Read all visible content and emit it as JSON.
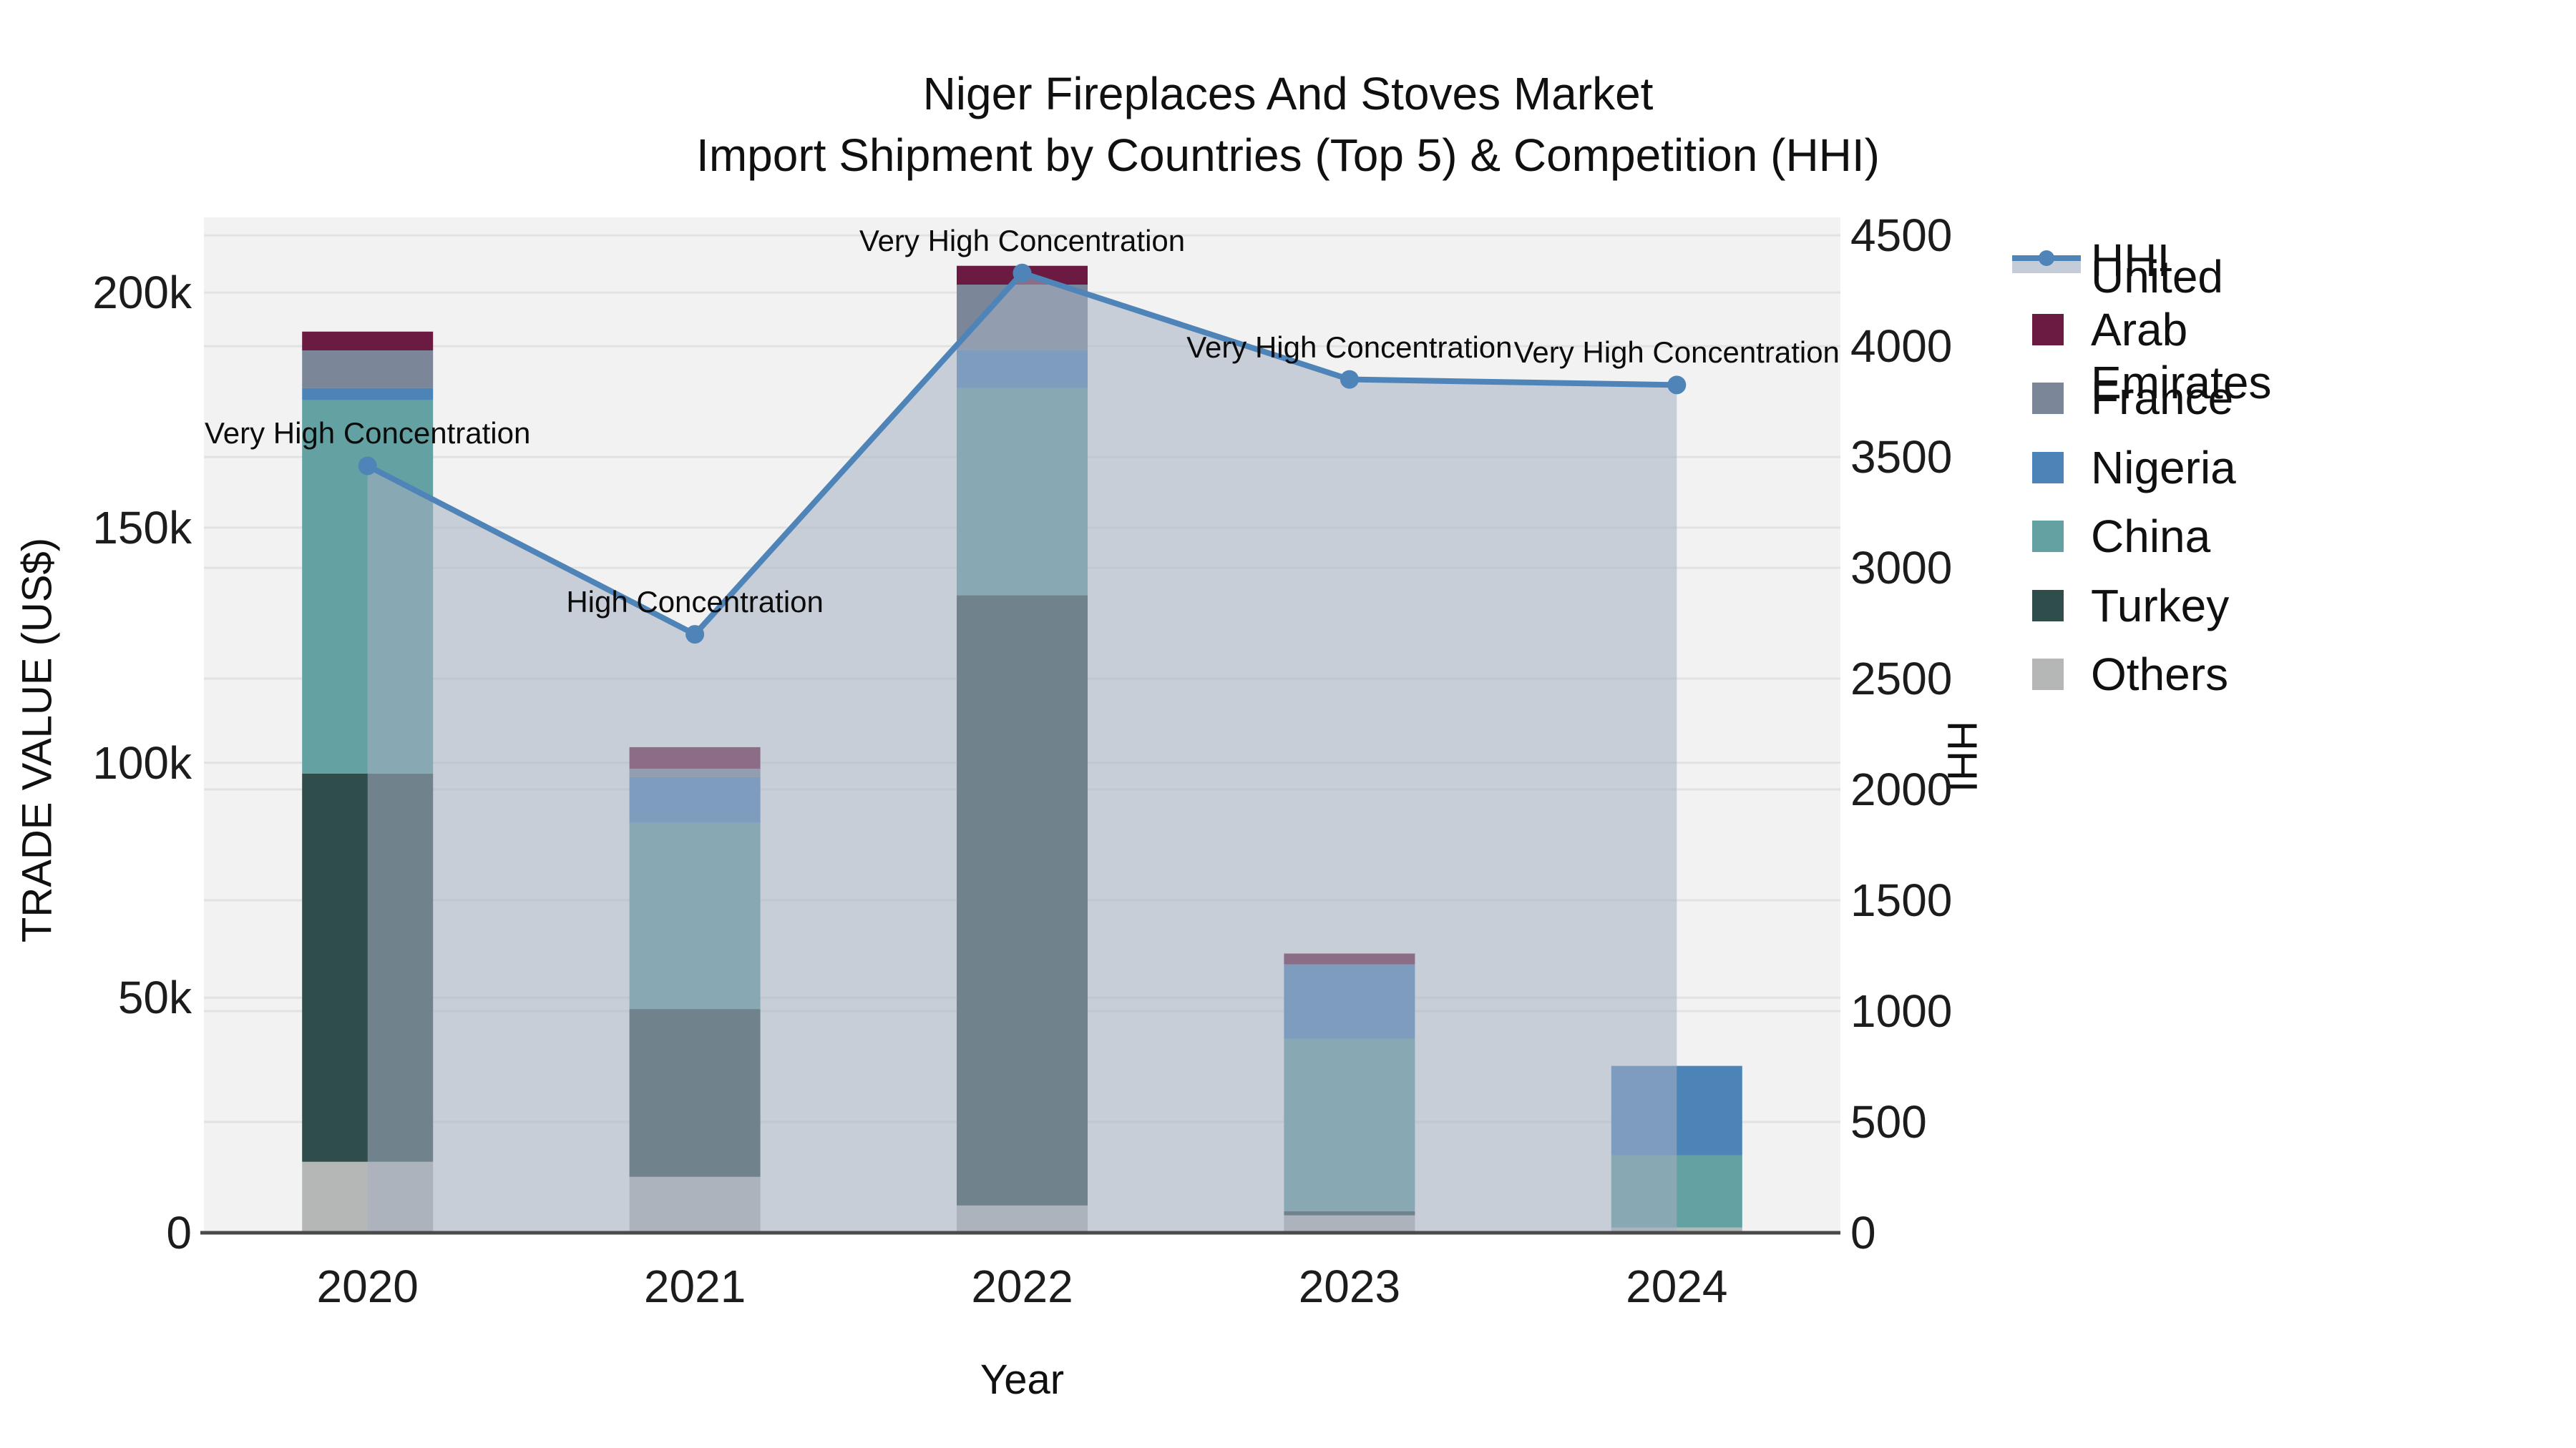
{
  "title": {
    "line1": "Niger Fireplaces And Stoves Market",
    "line2": "Import Shipment by Countries (Top 5) & Competition (HHI)"
  },
  "axes": {
    "left": {
      "title": "TRADE VALUE (US$)",
      "tick_labels": [
        "0",
        "50k",
        "100k",
        "150k",
        "200k"
      ],
      "tick_values": [
        0,
        50,
        100,
        150,
        200
      ]
    },
    "right": {
      "title": "HHI",
      "tick_labels": [
        "0",
        "500",
        "1000",
        "1500",
        "2000",
        "2500",
        "3000",
        "3500",
        "4000",
        "4500"
      ],
      "tick_values": [
        0,
        500,
        1000,
        1500,
        2000,
        2500,
        3000,
        3500,
        4000,
        4500
      ]
    },
    "x": {
      "title": "Year"
    }
  },
  "chart_data": {
    "type": [
      "bar",
      "line"
    ],
    "title": "Niger Fireplaces And Stoves Market — Import Shipment by Countries (Top 5) & Competition (HHI)",
    "categories": [
      "2020",
      "2021",
      "2022",
      "2023",
      "2024"
    ],
    "xlabel": "Year",
    "ylabel_left": "TRADE VALUE (US$)",
    "ylabel_right": "HHI",
    "unit": "US$ thousands",
    "ylim_left": [
      0,
      216
    ],
    "ylim_right": [
      0,
      4581
    ],
    "grid": true,
    "legend_position": "right",
    "series": [
      {
        "name": "Others",
        "color": "#b5b7b6",
        "values": [
          15.1,
          11.9,
          5.8,
          3.7,
          1.1
        ]
      },
      {
        "name": "Turkey",
        "color": "#2f4d4a",
        "values": [
          82.6,
          35.7,
          129.8,
          0.9,
          0
        ]
      },
      {
        "name": "China",
        "color": "#64a1a3",
        "values": [
          79.4,
          39.6,
          44.1,
          36.7,
          15.4
        ]
      },
      {
        "name": "Nigeria",
        "color": "#4d84b8",
        "values": [
          2.6,
          9.7,
          8.1,
          15.8,
          19.0
        ]
      },
      {
        "name": "France",
        "color": "#7b8798",
        "values": [
          8.0,
          1.8,
          13.9,
          0,
          0
        ]
      },
      {
        "name": "United Arab Emirates",
        "color": "#6b1b42",
        "values": [
          4.0,
          4.6,
          4.0,
          2.3,
          0
        ]
      }
    ],
    "line_series": {
      "name": "HHI",
      "color": "#4f84b8",
      "area_fill": "rgba(165,176,194,0.55)",
      "values": [
        3460,
        2700,
        4330,
        3850,
        3825
      ]
    },
    "annotations": [
      {
        "year": "2020",
        "text": "Very High Concentration"
      },
      {
        "year": "2021",
        "text": "High Concentration"
      },
      {
        "year": "2022",
        "text": "Very High Concentration"
      },
      {
        "year": "2023",
        "text": "Very High Concentration"
      },
      {
        "year": "2024",
        "text": "Very High Concentration"
      }
    ]
  },
  "legend": [
    {
      "label": "HHI",
      "type": "line",
      "color": "#4f84b8"
    },
    {
      "label": "United Arab Emirates",
      "type": "square",
      "color": "#6b1b42"
    },
    {
      "label": "France",
      "type": "square",
      "color": "#7b8798"
    },
    {
      "label": "Nigeria",
      "type": "square",
      "color": "#4d84b8"
    },
    {
      "label": "China",
      "type": "square",
      "color": "#64a1a3"
    },
    {
      "label": "Turkey",
      "type": "square",
      "color": "#2f4d4a"
    },
    {
      "label": "Others",
      "type": "square",
      "color": "#b5b7b6"
    }
  ],
  "style": {
    "plot_bg": "#f2f2f2",
    "grid_color": "#e2e2e2",
    "axis_line_color": "#4a4a4a",
    "text_color": "#111111"
  }
}
